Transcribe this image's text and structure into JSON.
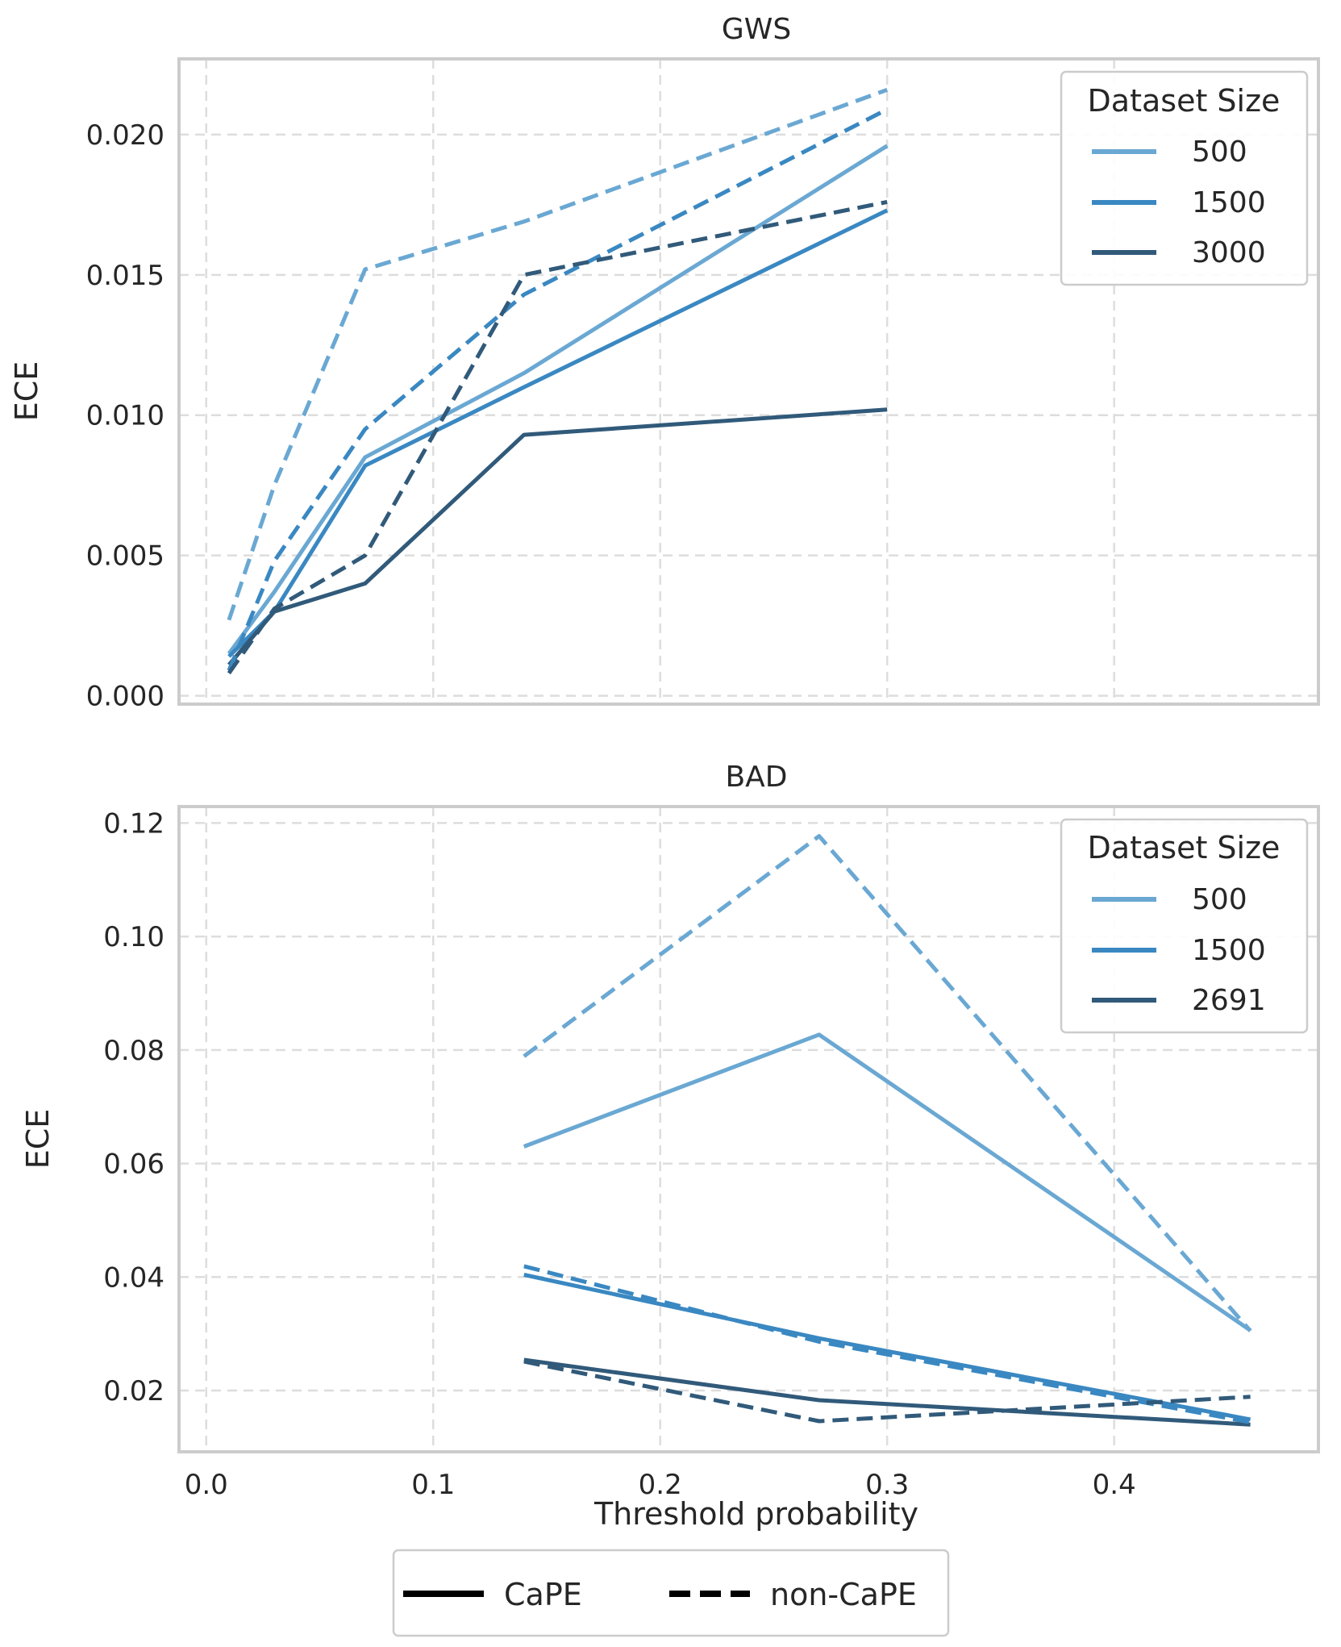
{
  "colors": {
    "series_500": "#6aa8d3",
    "series_1500": "#3a88c2",
    "series_3000": "#315a7a",
    "grid": "#dddddd",
    "frame": "#cccccc",
    "text": "#262626"
  },
  "shared": {
    "xlabel": "Threshold probability",
    "xlim": [
      -0.012,
      0.49
    ],
    "xticks": [
      0.0,
      0.1,
      0.2,
      0.3,
      0.4
    ],
    "xtick_labels": [
      "0.0",
      "0.1",
      "0.2",
      "0.3",
      "0.4"
    ]
  },
  "style_legend": {
    "items": [
      {
        "label": "CaPE",
        "style": "solid"
      },
      {
        "label": "non-CaPE",
        "style": "dashed"
      }
    ]
  },
  "chart_data": [
    {
      "type": "line",
      "title": "GWS",
      "xlabel": "",
      "ylabel": "ECE",
      "ylim": [
        -0.0003,
        0.0227
      ],
      "yticks": [
        0.0,
        0.005,
        0.01,
        0.015,
        0.02
      ],
      "ytick_labels": [
        "0.000",
        "0.005",
        "0.010",
        "0.015",
        "0.020"
      ],
      "grid": true,
      "legend": {
        "title": "Dataset Size",
        "position": "top-right",
        "entries": [
          "500",
          "1500",
          "3000"
        ]
      },
      "series": [
        {
          "name": "500",
          "method": "CaPE",
          "color_key": "series_500",
          "x": [
            0.01,
            0.03,
            0.07,
            0.14,
            0.3
          ],
          "values": [
            0.0015,
            0.0037,
            0.0085,
            0.0115,
            0.0196
          ]
        },
        {
          "name": "1500",
          "method": "CaPE",
          "color_key": "series_1500",
          "x": [
            0.01,
            0.03,
            0.07,
            0.14,
            0.3
          ],
          "values": [
            0.0014,
            0.003,
            0.0082,
            0.011,
            0.0173
          ]
        },
        {
          "name": "3000",
          "method": "CaPE",
          "color_key": "series_3000",
          "x": [
            0.01,
            0.03,
            0.07,
            0.14,
            0.3
          ],
          "values": [
            0.0011,
            0.003,
            0.004,
            0.0093,
            0.0102
          ]
        },
        {
          "name": "500",
          "method": "non-CaPE",
          "color_key": "series_500",
          "x": [
            0.01,
            0.03,
            0.07,
            0.14,
            0.3
          ],
          "values": [
            0.0027,
            0.0075,
            0.0152,
            0.0169,
            0.0216
          ]
        },
        {
          "name": "1500",
          "method": "non-CaPE",
          "color_key": "series_1500",
          "x": [
            0.01,
            0.03,
            0.07,
            0.14,
            0.3
          ],
          "values": [
            0.0009,
            0.0048,
            0.0095,
            0.0143,
            0.0209
          ]
        },
        {
          "name": "3000",
          "method": "non-CaPE",
          "color_key": "series_3000",
          "x": [
            0.01,
            0.03,
            0.07,
            0.14,
            0.3
          ],
          "values": [
            0.0008,
            0.0031,
            0.005,
            0.015,
            0.0176
          ]
        }
      ]
    },
    {
      "type": "line",
      "title": "BAD",
      "xlabel": "Threshold probability",
      "ylabel": "ECE",
      "ylim": [
        0.0092,
        0.1229
      ],
      "yticks": [
        0.02,
        0.04,
        0.06,
        0.08,
        0.1,
        0.12
      ],
      "ytick_labels": [
        "0.02",
        "0.04",
        "0.06",
        "0.08",
        "0.10",
        "0.12"
      ],
      "grid": true,
      "legend": {
        "title": "Dataset Size",
        "position": "top-right",
        "entries": [
          "500",
          "1500",
          "2691"
        ]
      },
      "series": [
        {
          "name": "500",
          "method": "CaPE",
          "color_key": "series_500",
          "x": [
            0.14,
            0.27,
            0.46
          ],
          "values": [
            0.063,
            0.0827,
            0.0306
          ]
        },
        {
          "name": "1500",
          "method": "CaPE",
          "color_key": "series_1500",
          "x": [
            0.14,
            0.27,
            0.46
          ],
          "values": [
            0.0404,
            0.0292,
            0.0149
          ]
        },
        {
          "name": "2691",
          "method": "CaPE",
          "color_key": "series_3000",
          "x": [
            0.14,
            0.27,
            0.46
          ],
          "values": [
            0.0254,
            0.0183,
            0.014
          ]
        },
        {
          "name": "500",
          "method": "non-CaPE",
          "color_key": "series_500",
          "x": [
            0.14,
            0.27,
            0.46
          ],
          "values": [
            0.0789,
            0.1177,
            0.0305
          ]
        },
        {
          "name": "1500",
          "method": "non-CaPE",
          "color_key": "series_1500",
          "x": [
            0.14,
            0.27,
            0.46
          ],
          "values": [
            0.0419,
            0.0286,
            0.0144
          ]
        },
        {
          "name": "2691",
          "method": "non-CaPE",
          "color_key": "series_3000",
          "x": [
            0.14,
            0.27,
            0.46
          ],
          "values": [
            0.0251,
            0.0146,
            0.0189
          ]
        }
      ]
    }
  ]
}
